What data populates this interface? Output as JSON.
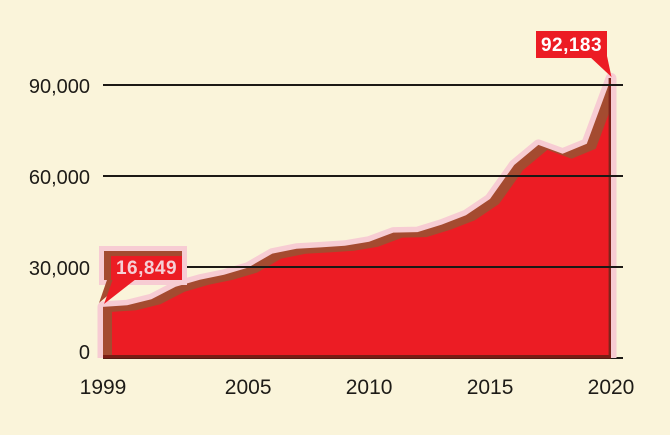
{
  "chart_data": {
    "type": "area",
    "title": "",
    "xlabel": "",
    "ylabel": "",
    "x": [
      1999,
      2000,
      2001,
      2002,
      2003,
      2004,
      2005,
      2006,
      2007,
      2008,
      2009,
      2010,
      2011,
      2012,
      2013,
      2014,
      2015,
      2016,
      2017,
      2018,
      2019,
      2020
    ],
    "values": [
      16849,
      17415,
      19394,
      23518,
      25785,
      27424,
      29813,
      34425,
      36010,
      36450,
      37004,
      38329,
      41340,
      41502,
      43982,
      47055,
      52404,
      63632,
      70237,
      67367,
      70630,
      92183
    ],
    "xlim": [
      1999,
      2020
    ],
    "ylim": [
      0,
      90000
    ],
    "xticks": [
      1999,
      2005,
      2010,
      2015,
      2020
    ],
    "xtick_labels": [
      "1999",
      "2005",
      "2010",
      "2015",
      "2020"
    ],
    "yticks": [
      0,
      30000,
      60000,
      90000
    ],
    "ytick_labels": [
      "0",
      "30,000",
      "60,000",
      "90,000"
    ],
    "grid": true,
    "legend": false,
    "callouts": [
      {
        "x": 1999,
        "value": 16849,
        "label": "16,849"
      },
      {
        "x": 2020,
        "value": 92183,
        "label": "92,183"
      }
    ],
    "colors": {
      "background": "#FAF4DA",
      "area": "#EC1C24",
      "area_shadow": "#A44B30",
      "area_halo": "#F7CCD3",
      "baseline_dark": "#7A1D15",
      "edge_dark": "#7D241B",
      "grid": "#1C1915",
      "text": "#1D1B17",
      "callout_bg": "#EC1C24",
      "callout_text_start": "#F5D0D6",
      "callout_text_end": "#FFFFFF"
    }
  }
}
